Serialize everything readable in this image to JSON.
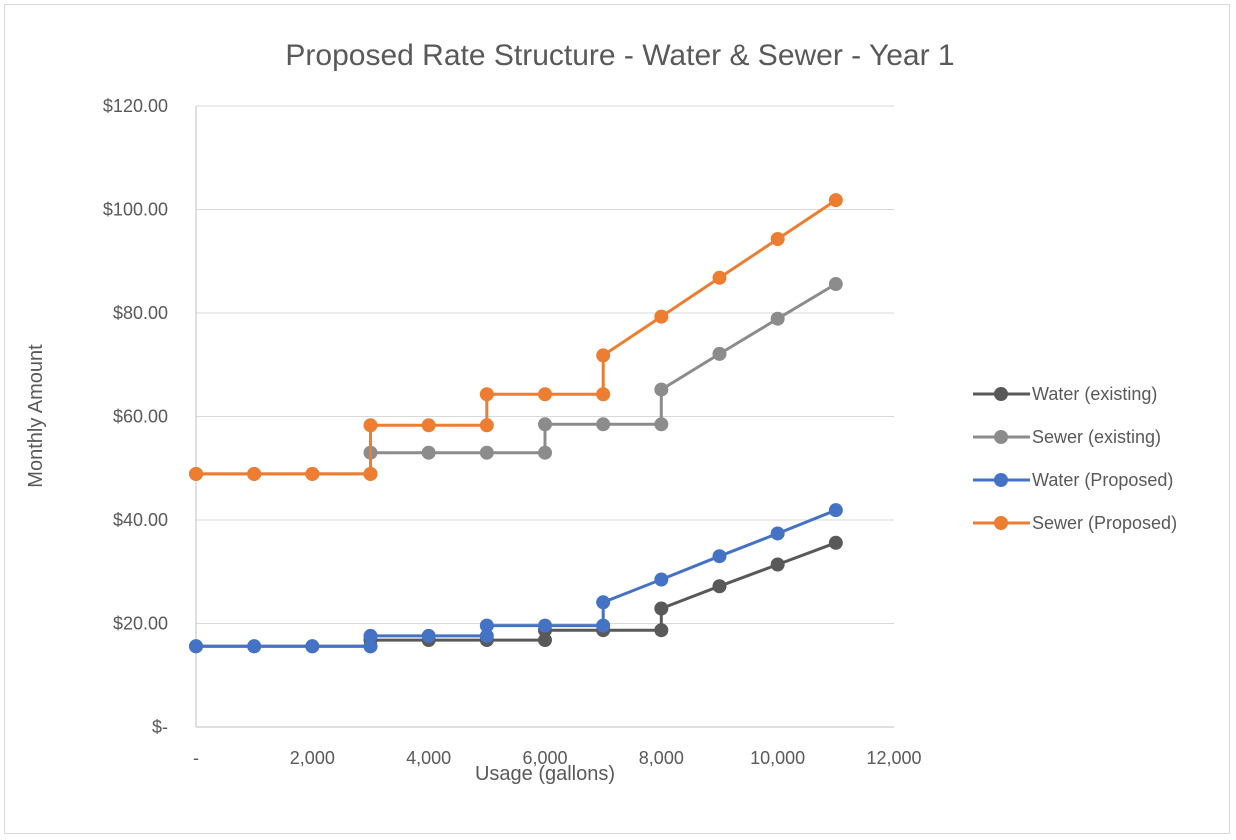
{
  "chart_data": {
    "type": "line",
    "title": "Proposed Rate Structure - Water & Sewer - Year 1",
    "xlabel": "Usage (gallons)",
    "ylabel": "Monthly Amount",
    "xlim": [
      0,
      12000
    ],
    "ylim": [
      0,
      120
    ],
    "x_ticks": [
      0,
      2000,
      4000,
      6000,
      8000,
      10000,
      12000
    ],
    "x_tick_labels": [
      "-",
      "2,000",
      "4,000",
      "6,000",
      "8,000",
      "10,000",
      "12,000"
    ],
    "y_ticks": [
      0,
      20,
      40,
      60,
      80,
      100,
      120
    ],
    "y_tick_labels": [
      "$-",
      "$20.00",
      "$40.00",
      "$60.00",
      "$80.00",
      "$100.00",
      "$120.00"
    ],
    "grid": "horizontal",
    "legend_position": "right",
    "series": [
      {
        "name": "Water (existing)",
        "color": "#595959",
        "points": [
          [
            0,
            15.6
          ],
          [
            1000,
            15.6
          ],
          [
            2000,
            15.6
          ],
          [
            3000,
            15.6
          ],
          [
            3000,
            16.8
          ],
          [
            4000,
            16.8
          ],
          [
            5000,
            16.8
          ],
          [
            6000,
            16.8
          ],
          [
            6000,
            18.7
          ],
          [
            7000,
            18.7
          ],
          [
            8000,
            18.7
          ],
          [
            8000,
            22.9
          ],
          [
            9000,
            27.2
          ],
          [
            10000,
            31.4
          ],
          [
            11000,
            35.6
          ]
        ]
      },
      {
        "name": "Sewer (existing)",
        "color": "#8c8c8c",
        "points": [
          [
            0,
            48.9
          ],
          [
            1000,
            48.9
          ],
          [
            2000,
            48.9
          ],
          [
            3000,
            48.9
          ],
          [
            3000,
            53.0
          ],
          [
            4000,
            53.0
          ],
          [
            5000,
            53.0
          ],
          [
            6000,
            53.0
          ],
          [
            6000,
            58.5
          ],
          [
            7000,
            58.5
          ],
          [
            8000,
            58.5
          ],
          [
            8000,
            65.2
          ],
          [
            9000,
            72.1
          ],
          [
            10000,
            78.9
          ],
          [
            11000,
            85.6
          ]
        ]
      },
      {
        "name": "Water (Proposed)",
        "color": "#4472c4",
        "points": [
          [
            0,
            15.6
          ],
          [
            1000,
            15.6
          ],
          [
            2000,
            15.6
          ],
          [
            3000,
            15.6
          ],
          [
            3000,
            17.6
          ],
          [
            4000,
            17.6
          ],
          [
            5000,
            17.6
          ],
          [
            5000,
            19.6
          ],
          [
            6000,
            19.6
          ],
          [
            7000,
            19.6
          ],
          [
            7000,
            24.1
          ],
          [
            8000,
            28.5
          ],
          [
            9000,
            33.0
          ],
          [
            10000,
            37.4
          ],
          [
            11000,
            41.9
          ]
        ]
      },
      {
        "name": "Sewer (Proposed)",
        "color": "#ed7d31",
        "points": [
          [
            0,
            48.9
          ],
          [
            1000,
            48.9
          ],
          [
            2000,
            48.9
          ],
          [
            3000,
            48.9
          ],
          [
            3000,
            58.3
          ],
          [
            4000,
            58.3
          ],
          [
            5000,
            58.3
          ],
          [
            5000,
            64.3
          ],
          [
            6000,
            64.3
          ],
          [
            7000,
            64.3
          ],
          [
            7000,
            71.8
          ],
          [
            8000,
            79.3
          ],
          [
            9000,
            86.8
          ],
          [
            10000,
            94.3
          ],
          [
            11000,
            101.8
          ]
        ]
      }
    ]
  }
}
